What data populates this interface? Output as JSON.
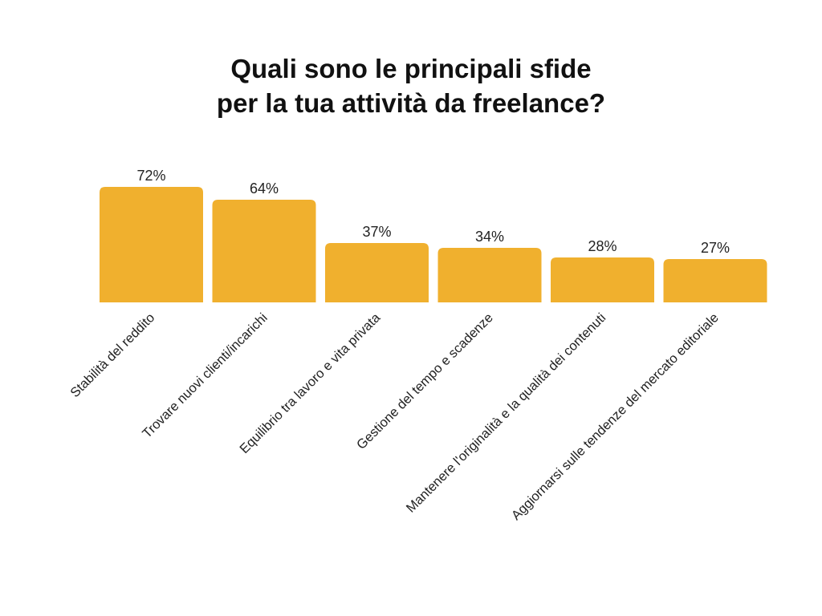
{
  "chart_data": {
    "type": "bar",
    "title": [
      "Quali sono le principali sfide",
      "per la tua attività da freelance?"
    ],
    "xlabel": "",
    "ylabel": "",
    "categories": [
      "Stabilità del reddito",
      "Trovare nuovi clienti/incarichi",
      "Equilibrio tra lavoro e vita privata",
      "Gestione del tempo e scadenze",
      "Mantenere l'originalità e la qualità dei contenuti",
      "Aggiornarsi sulle tendenze del mercato editoriale"
    ],
    "values": [
      72,
      64,
      37,
      34,
      28,
      27
    ],
    "value_labels": [
      "72%",
      "64%",
      "37%",
      "34%",
      "28%",
      "27%"
    ],
    "value_unit": "%",
    "ylim": [
      0,
      100
    ],
    "grid": false,
    "legend": "none",
    "bar_color": "#F0B02E",
    "text_color": "#222222"
  }
}
